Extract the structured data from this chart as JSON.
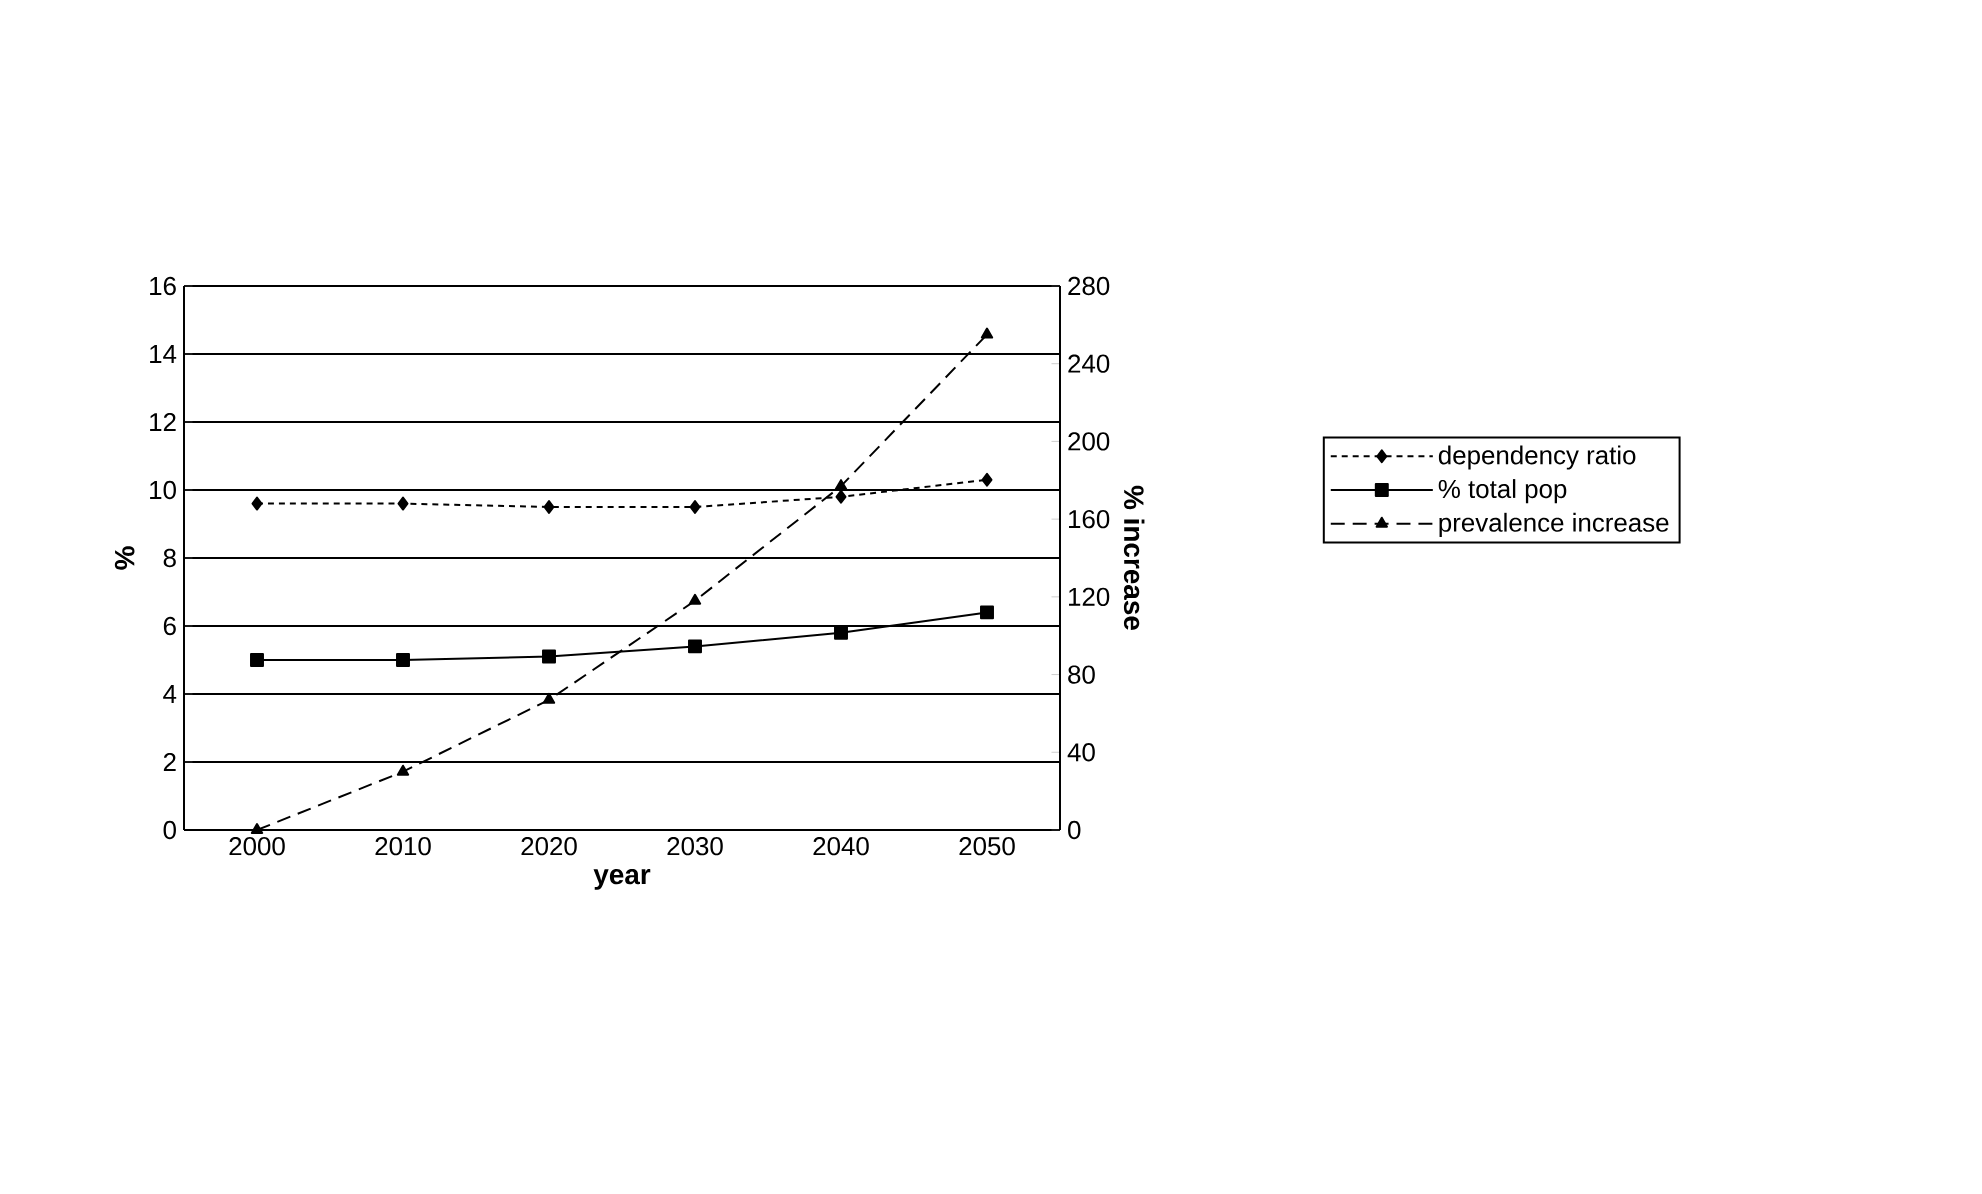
{
  "chart_data": {
    "type": "line",
    "xlabel": "year",
    "ylabel": "%",
    "y2label": "% increase",
    "categories": [
      "2000",
      "2010",
      "2020",
      "2030",
      "2040",
      "2050"
    ],
    "ylim": [
      0,
      16
    ],
    "yticks": [
      0,
      2,
      4,
      6,
      8,
      10,
      12,
      14,
      16
    ],
    "y2lim": [
      0,
      280
    ],
    "y2ticks": [
      0,
      40,
      80,
      120,
      160,
      200,
      240,
      280
    ],
    "grid": "y",
    "legend": "right",
    "series": [
      {
        "name": "dependency ratio",
        "color": "#000000",
        "marker": "diamond",
        "line_style": "dotted",
        "values": [
          9.6,
          9.6,
          9.5,
          9.5,
          9.8,
          10.3
        ]
      },
      {
        "name": "% total pop",
        "color": "#000000",
        "marker": "square",
        "line_style": "solid",
        "values": [
          5.0,
          5.0,
          5.1,
          5.4,
          5.8,
          6.4
        ]
      },
      {
        "name": "prevalence increase",
        "color": "#000000",
        "marker": "triangle",
        "line_style": "dashed",
        "axis": "y2",
        "values": [
          0,
          30,
          67,
          118,
          177,
          255
        ]
      }
    ]
  }
}
